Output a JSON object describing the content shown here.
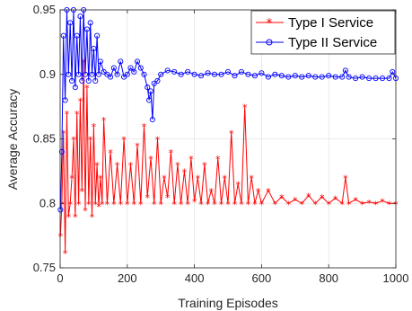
{
  "chart_data": {
    "type": "line",
    "title": "",
    "xlabel": "Training Episodes",
    "ylabel": "Average Accuracy",
    "xlim": [
      0,
      1000
    ],
    "ylim": [
      0.75,
      0.95
    ],
    "xticks": [
      "0",
      "200",
      "400",
      "600",
      "800",
      "1000"
    ],
    "yticks": [
      "0.75",
      "0.8",
      "0.85",
      "0.9",
      "0.95"
    ],
    "grid": true,
    "legend_position": "top-right",
    "series": [
      {
        "name": "Type I Service",
        "color": "#ff0000",
        "marker": "asterisk",
        "x": [
          1,
          5,
          10,
          15,
          20,
          25,
          30,
          35,
          40,
          45,
          50,
          55,
          60,
          65,
          70,
          75,
          80,
          85,
          90,
          95,
          100,
          105,
          110,
          115,
          120,
          125,
          130,
          140,
          150,
          160,
          170,
          180,
          190,
          200,
          210,
          220,
          230,
          240,
          250,
          260,
          270,
          280,
          290,
          300,
          310,
          320,
          330,
          340,
          350,
          360,
          370,
          380,
          390,
          400,
          410,
          420,
          430,
          440,
          450,
          460,
          470,
          480,
          490,
          500,
          510,
          520,
          530,
          540,
          550,
          560,
          570,
          580,
          590,
          600,
          620,
          640,
          660,
          680,
          700,
          720,
          740,
          760,
          780,
          800,
          820,
          840,
          850,
          860,
          880,
          900,
          920,
          940,
          960,
          980,
          1000
        ],
        "y": [
          0.775,
          0.8,
          0.855,
          0.762,
          0.87,
          0.79,
          0.8,
          0.82,
          0.85,
          0.79,
          0.87,
          0.8,
          0.88,
          0.81,
          0.91,
          0.795,
          0.89,
          0.8,
          0.85,
          0.79,
          0.86,
          0.8,
          0.83,
          0.798,
          0.82,
          0.8,
          0.865,
          0.8,
          0.84,
          0.8,
          0.83,
          0.8,
          0.85,
          0.8,
          0.83,
          0.8,
          0.845,
          0.8,
          0.86,
          0.805,
          0.835,
          0.8,
          0.85,
          0.8,
          0.82,
          0.805,
          0.84,
          0.8,
          0.83,
          0.8,
          0.825,
          0.8,
          0.835,
          0.802,
          0.82,
          0.8,
          0.83,
          0.8,
          0.81,
          0.8,
          0.835,
          0.8,
          0.82,
          0.8,
          0.855,
          0.8,
          0.815,
          0.8,
          0.875,
          0.8,
          0.82,
          0.8,
          0.81,
          0.8,
          0.81,
          0.8,
          0.805,
          0.8,
          0.803,
          0.8,
          0.806,
          0.8,
          0.805,
          0.8,
          0.804,
          0.8,
          0.82,
          0.8,
          0.803,
          0.8,
          0.801,
          0.8,
          0.802,
          0.8,
          0.8
        ]
      },
      {
        "name": "Type II Service",
        "color": "#0000ff",
        "marker": "circle",
        "x": [
          1,
          5,
          10,
          15,
          20,
          25,
          30,
          35,
          40,
          45,
          50,
          55,
          60,
          65,
          70,
          75,
          80,
          85,
          90,
          95,
          100,
          105,
          110,
          115,
          120,
          130,
          140,
          150,
          160,
          170,
          180,
          190,
          200,
          210,
          220,
          230,
          240,
          250,
          260,
          265,
          270,
          275,
          280,
          290,
          300,
          320,
          340,
          360,
          380,
          400,
          420,
          440,
          460,
          480,
          500,
          520,
          540,
          560,
          580,
          600,
          620,
          640,
          660,
          680,
          700,
          720,
          740,
          760,
          780,
          800,
          820,
          840,
          850,
          860,
          880,
          900,
          920,
          940,
          960,
          980,
          990,
          1000
        ],
        "y": [
          0.795,
          0.84,
          0.93,
          0.88,
          0.95,
          0.9,
          0.94,
          0.895,
          0.95,
          0.89,
          0.93,
          0.9,
          0.945,
          0.895,
          0.95,
          0.9,
          0.935,
          0.895,
          0.94,
          0.9,
          0.92,
          0.895,
          0.93,
          0.9,
          0.91,
          0.902,
          0.9,
          0.898,
          0.905,
          0.9,
          0.91,
          0.898,
          0.9,
          0.905,
          0.902,
          0.91,
          0.905,
          0.9,
          0.89,
          0.88,
          0.887,
          0.865,
          0.893,
          0.895,
          0.9,
          0.903,
          0.902,
          0.9,
          0.902,
          0.9,
          0.899,
          0.901,
          0.9,
          0.9,
          0.902,
          0.899,
          0.902,
          0.9,
          0.899,
          0.901,
          0.898,
          0.9,
          0.899,
          0.898,
          0.899,
          0.898,
          0.899,
          0.898,
          0.898,
          0.899,
          0.898,
          0.898,
          0.903,
          0.898,
          0.897,
          0.898,
          0.897,
          0.897,
          0.897,
          0.897,
          0.902,
          0.897
        ]
      }
    ]
  }
}
